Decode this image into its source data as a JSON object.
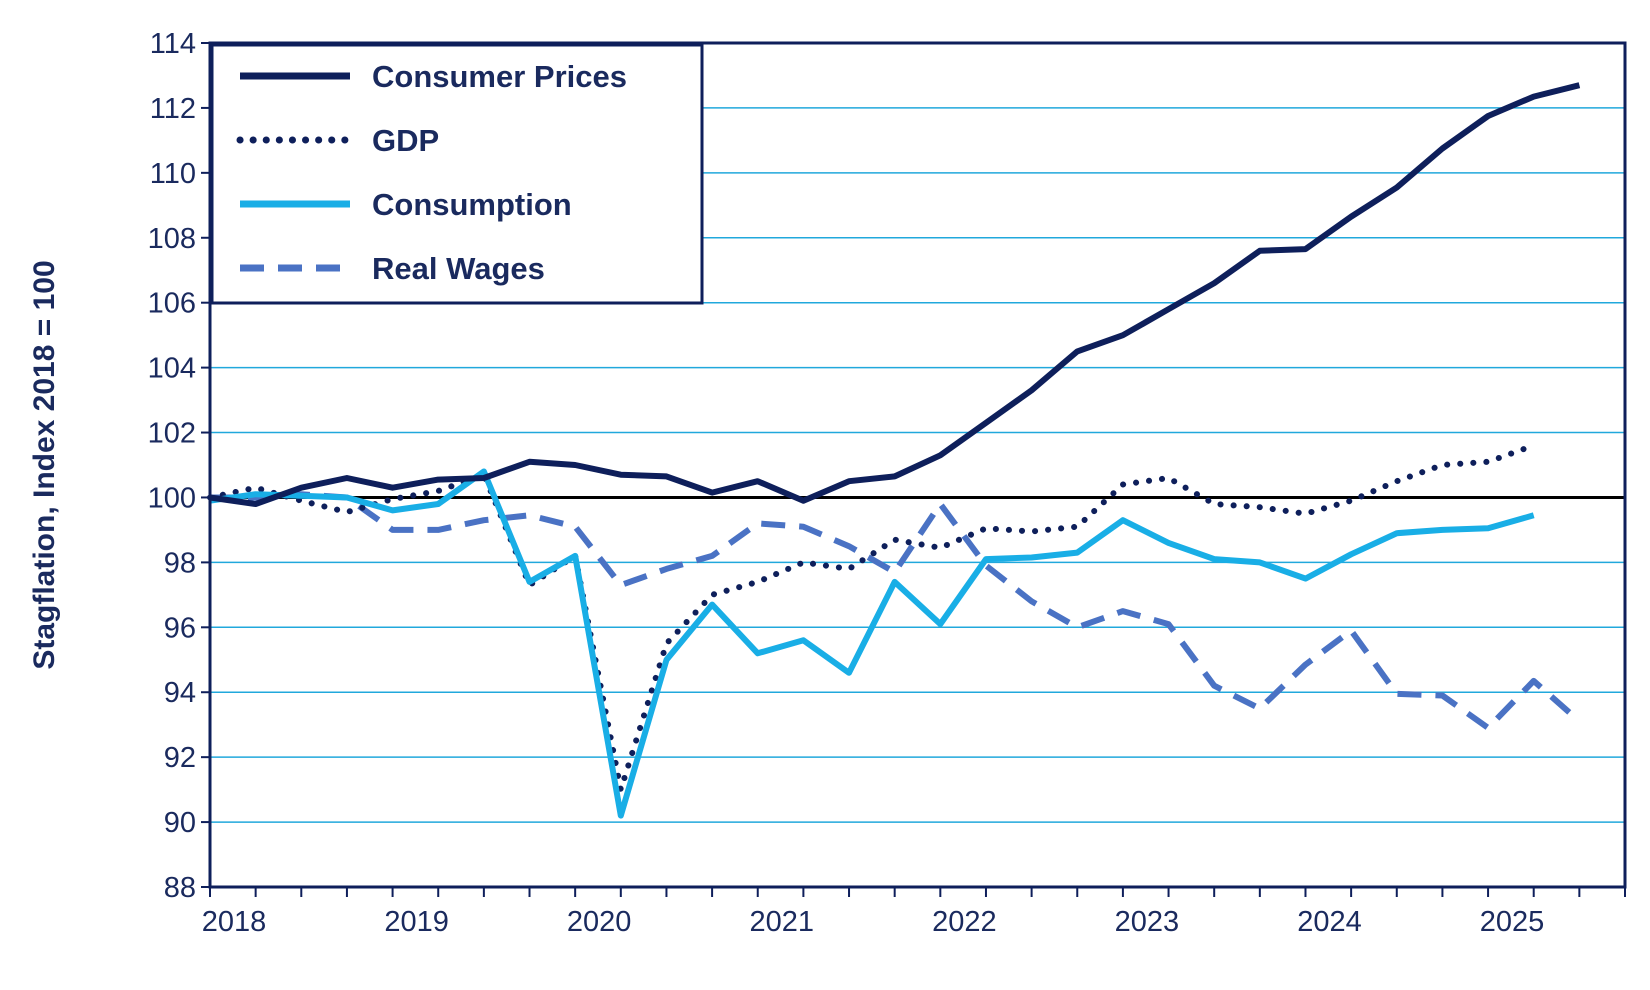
{
  "chart_data": {
    "type": "line",
    "title": "",
    "xlabel": "",
    "ylabel": "Stagflation,  Index 2018 = 100",
    "ylim": [
      88,
      114
    ],
    "xlim": [
      2018,
      2025.75
    ],
    "yticks": [
      88,
      90,
      92,
      94,
      96,
      98,
      100,
      102,
      104,
      106,
      108,
      110,
      112,
      114
    ],
    "xticks": [
      2018,
      2019,
      2020,
      2021,
      2022,
      2023,
      2024,
      2025
    ],
    "grid": true,
    "legend_position": "top-left",
    "reference_line": 100,
    "x": [
      2018,
      2018.25,
      2018.5,
      2018.75,
      2019,
      2019.25,
      2019.5,
      2019.75,
      2020,
      2020.25,
      2020.5,
      2020.75,
      2021,
      2021.25,
      2021.5,
      2021.75,
      2022,
      2022.25,
      2022.5,
      2022.75,
      2023,
      2023.25,
      2023.5,
      2023.75,
      2024,
      2024.25,
      2024.5,
      2024.75,
      2025,
      2025.25,
      2025.5
    ],
    "series": [
      {
        "name": "Consumer Prices",
        "style": "solid",
        "color": "#0e1f5b",
        "values": [
          100.0,
          99.8,
          100.3,
          100.6,
          100.3,
          100.55,
          100.6,
          101.1,
          101.0,
          100.7,
          100.65,
          100.15,
          100.5,
          99.9,
          100.5,
          100.65,
          101.3,
          102.3,
          103.3,
          104.5,
          105.0,
          105.8,
          106.6,
          107.6,
          107.65,
          108.65,
          109.55,
          110.75,
          111.75,
          112.35,
          112.7
        ]
      },
      {
        "name": "GDP",
        "style": "dotted",
        "color": "#0e1f5b",
        "values": [
          100.0,
          100.3,
          99.9,
          99.55,
          99.95,
          100.2,
          100.7,
          97.3,
          98.2,
          91.0,
          95.5,
          97.0,
          97.4,
          98.0,
          97.8,
          98.7,
          98.45,
          99.05,
          98.95,
          99.1,
          100.4,
          100.6,
          99.8,
          99.7,
          99.5,
          99.9,
          100.5,
          101.0,
          101.1,
          101.6,
          null
        ]
      },
      {
        "name": "Consumption",
        "style": "solid",
        "color": "#19aee6",
        "values": [
          99.9,
          100.1,
          100.05,
          100.0,
          99.6,
          99.8,
          100.8,
          97.4,
          98.2,
          90.2,
          95.0,
          96.7,
          95.2,
          95.6,
          94.6,
          97.4,
          96.1,
          98.1,
          98.15,
          98.3,
          99.3,
          98.6,
          98.1,
          98.0,
          97.5,
          98.25,
          98.9,
          99.0,
          99.05,
          99.45,
          null
        ]
      },
      {
        "name": "Real Wages",
        "style": "dashed",
        "color": "#4a72c4",
        "values": [
          100.0,
          100.0,
          100.1,
          100.0,
          99.0,
          99.0,
          99.3,
          99.45,
          99.1,
          97.3,
          97.8,
          98.2,
          99.2,
          99.1,
          98.5,
          97.7,
          99.8,
          97.9,
          96.8,
          96.0,
          96.5,
          96.1,
          94.2,
          93.5,
          94.85,
          95.9,
          93.95,
          93.9,
          92.9,
          94.35,
          93.1
        ]
      }
    ]
  }
}
